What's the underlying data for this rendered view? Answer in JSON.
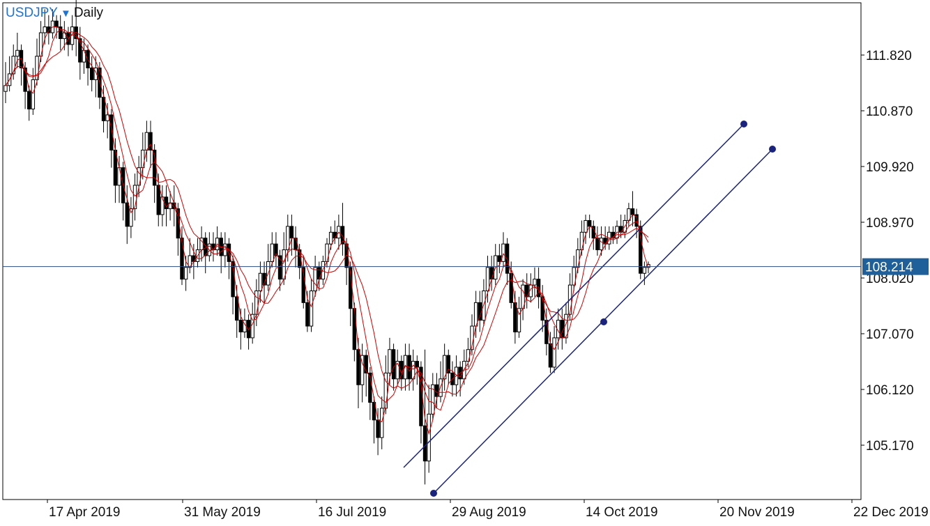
{
  "header": {
    "symbol": "USDJPY",
    "dropdown_icon": "triangle-down-icon",
    "timeframe": "Daily"
  },
  "colors": {
    "candle": "#000000",
    "ma": "#cc0000",
    "channel": "#1a237e",
    "price_line": "#2c4a7c",
    "price_badge": "#1f5f9a",
    "accent": "#1f73d6"
  },
  "chart_data": {
    "type": "candlestick",
    "title": "USDJPY Daily",
    "y_ticks": [
      "111.820",
      "110.870",
      "109.920",
      "108.970",
      "108.020",
      "107.070",
      "106.120",
      "105.170"
    ],
    "y_tick_values": [
      111.82,
      110.87,
      109.92,
      108.97,
      108.02,
      107.07,
      106.12,
      105.17
    ],
    "x_ticks": [
      "17 Apr 2019",
      "31 May 2019",
      "16 Jul 2019",
      "29 Aug 2019",
      "14 Oct 2019",
      "20 Nov 2019",
      "22 Dec 2019"
    ],
    "ylim": [
      104.25,
      112.85
    ],
    "current_price": 108.214,
    "current_price_label": "108.214",
    "moving_averages": 3,
    "channel_lines": 2,
    "grid": false,
    "candles": [
      [
        111.2,
        111.3,
        111.7,
        111.0
      ],
      [
        111.3,
        111.5,
        111.8,
        111.2
      ],
      [
        111.5,
        111.8,
        112.0,
        111.4
      ],
      [
        111.8,
        111.9,
        112.2,
        111.6
      ],
      [
        111.9,
        111.6,
        112.0,
        111.3
      ],
      [
        111.6,
        111.2,
        111.7,
        110.9
      ],
      [
        111.2,
        110.9,
        111.3,
        110.7
      ],
      [
        110.9,
        111.4,
        111.6,
        110.8
      ],
      [
        111.4,
        111.8,
        112.1,
        111.3
      ],
      [
        111.8,
        112.2,
        112.4,
        111.7
      ],
      [
        112.2,
        112.3,
        112.6,
        112.0
      ],
      [
        112.3,
        112.2,
        112.5,
        112.0
      ],
      [
        112.2,
        112.4,
        112.6,
        112.1
      ],
      [
        112.4,
        112.3,
        112.5,
        112.1
      ],
      [
        112.3,
        112.1,
        112.5,
        111.9
      ],
      [
        112.1,
        112.2,
        112.4,
        111.9
      ],
      [
        112.2,
        112.0,
        112.3,
        111.8
      ],
      [
        112.0,
        112.3,
        112.5,
        111.9
      ],
      [
        112.3,
        112.1,
        112.9,
        111.8
      ],
      [
        112.1,
        111.7,
        112.3,
        111.4
      ],
      [
        111.7,
        111.9,
        112.1,
        111.5
      ],
      [
        111.9,
        111.6,
        112.0,
        111.3
      ],
      [
        111.6,
        111.4,
        111.8,
        111.2
      ],
      [
        111.4,
        111.6,
        111.8,
        111.1
      ],
      [
        111.6,
        111.1,
        111.7,
        110.9
      ],
      [
        111.1,
        110.7,
        111.3,
        110.5
      ],
      [
        110.7,
        110.8,
        111.0,
        110.4
      ],
      [
        110.8,
        110.2,
        110.9,
        109.9
      ],
      [
        110.2,
        109.6,
        110.4,
        109.3
      ],
      [
        109.6,
        109.9,
        110.1,
        109.3
      ],
      [
        109.9,
        109.3,
        110.0,
        109.0
      ],
      [
        109.3,
        108.9,
        109.6,
        108.6
      ],
      [
        108.9,
        109.2,
        109.4,
        108.7
      ],
      [
        109.2,
        109.6,
        109.8,
        109.0
      ],
      [
        109.6,
        109.9,
        110.1,
        109.4
      ],
      [
        109.9,
        110.2,
        110.5,
        109.7
      ],
      [
        110.2,
        110.5,
        110.7,
        110.0
      ],
      [
        110.5,
        110.2,
        110.7,
        109.9
      ],
      [
        110.2,
        109.6,
        110.3,
        109.3
      ],
      [
        109.6,
        109.1,
        109.8,
        108.9
      ],
      [
        109.1,
        109.4,
        109.6,
        108.9
      ],
      [
        109.4,
        109.2,
        109.6,
        108.9
      ],
      [
        109.2,
        109.3,
        109.5,
        109.0
      ],
      [
        109.3,
        109.2,
        109.6,
        108.9
      ],
      [
        109.2,
        108.7,
        109.3,
        108.4
      ],
      [
        108.7,
        108.0,
        108.9,
        107.9
      ],
      [
        108.0,
        108.2,
        108.4,
        107.8
      ],
      [
        108.2,
        108.4,
        108.7,
        108.1
      ],
      [
        108.4,
        108.3,
        108.6,
        108.0
      ],
      [
        108.3,
        108.5,
        108.7,
        108.2
      ],
      [
        108.5,
        108.7,
        108.9,
        108.3
      ],
      [
        108.7,
        108.4,
        108.8,
        108.1
      ],
      [
        108.4,
        108.6,
        108.8,
        108.3
      ],
      [
        108.6,
        108.5,
        108.8,
        108.3
      ],
      [
        108.5,
        108.7,
        108.9,
        108.4
      ],
      [
        108.7,
        108.4,
        108.8,
        108.1
      ],
      [
        108.4,
        108.6,
        108.8,
        108.2
      ],
      [
        108.6,
        108.3,
        108.7,
        108.0
      ],
      [
        108.3,
        107.7,
        108.4,
        107.4
      ],
      [
        107.7,
        107.3,
        107.9,
        107.0
      ],
      [
        107.3,
        107.1,
        107.5,
        106.8
      ],
      [
        107.1,
        107.3,
        107.5,
        107.0
      ],
      [
        107.3,
        107.0,
        107.4,
        106.8
      ],
      [
        107.0,
        107.4,
        107.6,
        106.9
      ],
      [
        107.4,
        107.8,
        108.0,
        107.2
      ],
      [
        107.8,
        108.1,
        108.3,
        107.6
      ],
      [
        108.1,
        107.9,
        108.3,
        107.6
      ],
      [
        107.9,
        108.3,
        108.6,
        107.8
      ],
      [
        108.3,
        108.6,
        108.8,
        108.2
      ],
      [
        108.6,
        108.4,
        108.8,
        108.2
      ],
      [
        108.4,
        108.0,
        108.5,
        107.8
      ],
      [
        108.0,
        108.5,
        108.8,
        107.9
      ],
      [
        108.5,
        108.9,
        109.1,
        108.3
      ],
      [
        108.9,
        108.7,
        109.1,
        108.4
      ],
      [
        108.7,
        108.5,
        108.9,
        108.2
      ],
      [
        108.5,
        108.2,
        108.6,
        108.0
      ],
      [
        108.2,
        107.6,
        108.4,
        107.5
      ],
      [
        107.6,
        107.2,
        107.8,
        107.1
      ],
      [
        107.2,
        107.8,
        108.0,
        107.1
      ],
      [
        107.8,
        108.2,
        108.4,
        107.7
      ],
      [
        108.2,
        108.0,
        108.3,
        107.8
      ],
      [
        108.0,
        108.3,
        108.4,
        107.9
      ],
      [
        108.3,
        108.6,
        108.7,
        108.2
      ],
      [
        108.6,
        108.8,
        108.9,
        108.5
      ],
      [
        108.8,
        108.7,
        109.0,
        108.6
      ],
      [
        108.7,
        108.9,
        109.1,
        108.5
      ],
      [
        108.9,
        108.6,
        109.3,
        108.4
      ],
      [
        108.6,
        108.2,
        108.7,
        107.9
      ],
      [
        108.2,
        107.5,
        108.3,
        107.2
      ],
      [
        107.5,
        106.8,
        107.6,
        106.6
      ],
      [
        106.8,
        106.2,
        107.0,
        105.8
      ],
      [
        106.2,
        106.7,
        106.9,
        105.9
      ],
      [
        106.7,
        106.4,
        106.8,
        106.0
      ],
      [
        106.4,
        105.9,
        106.5,
        105.6
      ],
      [
        105.9,
        105.6,
        106.0,
        105.2
      ],
      [
        105.6,
        105.3,
        105.8,
        105.0
      ],
      [
        105.3,
        105.8,
        106.0,
        105.1
      ],
      [
        105.8,
        106.4,
        106.7,
        105.7
      ],
      [
        106.4,
        106.8,
        107.0,
        106.2
      ],
      [
        106.8,
        106.3,
        106.9,
        106.1
      ],
      [
        106.3,
        106.6,
        106.8,
        106.2
      ],
      [
        106.6,
        106.3,
        106.7,
        106.1
      ],
      [
        106.3,
        106.7,
        106.9,
        106.1
      ],
      [
        106.7,
        106.3,
        106.9,
        106.1
      ],
      [
        106.3,
        106.6,
        106.8,
        106.1
      ],
      [
        106.6,
        106.5,
        106.7,
        106.2
      ],
      [
        106.5,
        105.5,
        106.6,
        105.2
      ],
      [
        105.5,
        104.9,
        106.8,
        104.5
      ],
      [
        104.9,
        105.7,
        106.2,
        104.7
      ],
      [
        105.7,
        106.2,
        106.4,
        105.6
      ],
      [
        106.2,
        106.0,
        106.4,
        105.8
      ],
      [
        106.0,
        106.3,
        106.6,
        105.9
      ],
      [
        106.3,
        106.7,
        106.9,
        106.1
      ],
      [
        106.7,
        106.4,
        106.8,
        106.2
      ],
      [
        106.4,
        106.2,
        106.6,
        106.0
      ],
      [
        106.2,
        106.5,
        106.7,
        106.0
      ],
      [
        106.5,
        106.3,
        106.6,
        106.0
      ],
      [
        106.3,
        106.6,
        106.8,
        106.2
      ],
      [
        106.6,
        106.8,
        107.0,
        106.5
      ],
      [
        106.8,
        107.2,
        107.4,
        106.7
      ],
      [
        107.2,
        107.6,
        107.8,
        107.0
      ],
      [
        107.6,
        107.3,
        107.8,
        107.1
      ],
      [
        107.3,
        107.8,
        108.0,
        107.2
      ],
      [
        107.8,
        108.2,
        108.4,
        107.6
      ],
      [
        108.2,
        108.0,
        108.4,
        107.8
      ],
      [
        108.0,
        108.4,
        108.6,
        107.9
      ],
      [
        108.4,
        108.3,
        108.6,
        108.1
      ],
      [
        108.3,
        108.6,
        108.8,
        108.2
      ],
      [
        108.6,
        108.1,
        108.7,
        107.9
      ],
      [
        108.1,
        107.6,
        108.3,
        107.5
      ],
      [
        107.6,
        107.1,
        107.8,
        106.9
      ],
      [
        107.1,
        107.5,
        107.7,
        107.0
      ],
      [
        107.5,
        107.9,
        108.0,
        107.3
      ],
      [
        107.9,
        107.7,
        108.1,
        107.5
      ],
      [
        107.7,
        107.9,
        108.1,
        107.6
      ],
      [
        107.9,
        108.0,
        108.2,
        107.7
      ],
      [
        108.0,
        107.7,
        108.2,
        107.5
      ],
      [
        107.7,
        107.3,
        107.9,
        107.1
      ],
      [
        107.3,
        106.9,
        107.5,
        106.7
      ],
      [
        106.9,
        106.5,
        107.1,
        106.4
      ],
      [
        106.5,
        107.0,
        107.2,
        106.4
      ],
      [
        107.0,
        107.3,
        107.5,
        106.8
      ],
      [
        107.3,
        107.0,
        107.5,
        106.8
      ],
      [
        107.0,
        107.4,
        107.6,
        106.9
      ],
      [
        107.4,
        107.9,
        108.1,
        107.3
      ],
      [
        107.9,
        108.2,
        108.4,
        107.8
      ],
      [
        108.2,
        108.5,
        108.7,
        108.1
      ],
      [
        108.5,
        108.8,
        109.0,
        108.4
      ],
      [
        108.8,
        109.0,
        109.1,
        108.6
      ],
      [
        109.0,
        108.9,
        109.1,
        108.7
      ],
      [
        108.9,
        108.7,
        109.0,
        108.5
      ],
      [
        108.7,
        108.5,
        108.9,
        108.4
      ],
      [
        108.5,
        108.7,
        108.9,
        108.4
      ],
      [
        108.7,
        108.6,
        108.9,
        108.5
      ],
      [
        108.6,
        108.8,
        108.9,
        108.5
      ],
      [
        108.8,
        108.7,
        108.9,
        108.6
      ],
      [
        108.7,
        108.9,
        109.0,
        108.6
      ],
      [
        108.9,
        108.8,
        109.1,
        108.7
      ],
      [
        108.8,
        109.0,
        109.1,
        108.7
      ],
      [
        109.0,
        109.2,
        109.3,
        108.9
      ],
      [
        109.2,
        109.1,
        109.5,
        108.9
      ],
      [
        109.1,
        108.9,
        109.2,
        108.7
      ],
      [
        108.9,
        108.1,
        109.0,
        108.0
      ],
      [
        108.1,
        108.2,
        108.3,
        107.9
      ],
      [
        108.2,
        108.25,
        108.3,
        108.1
      ]
    ]
  }
}
